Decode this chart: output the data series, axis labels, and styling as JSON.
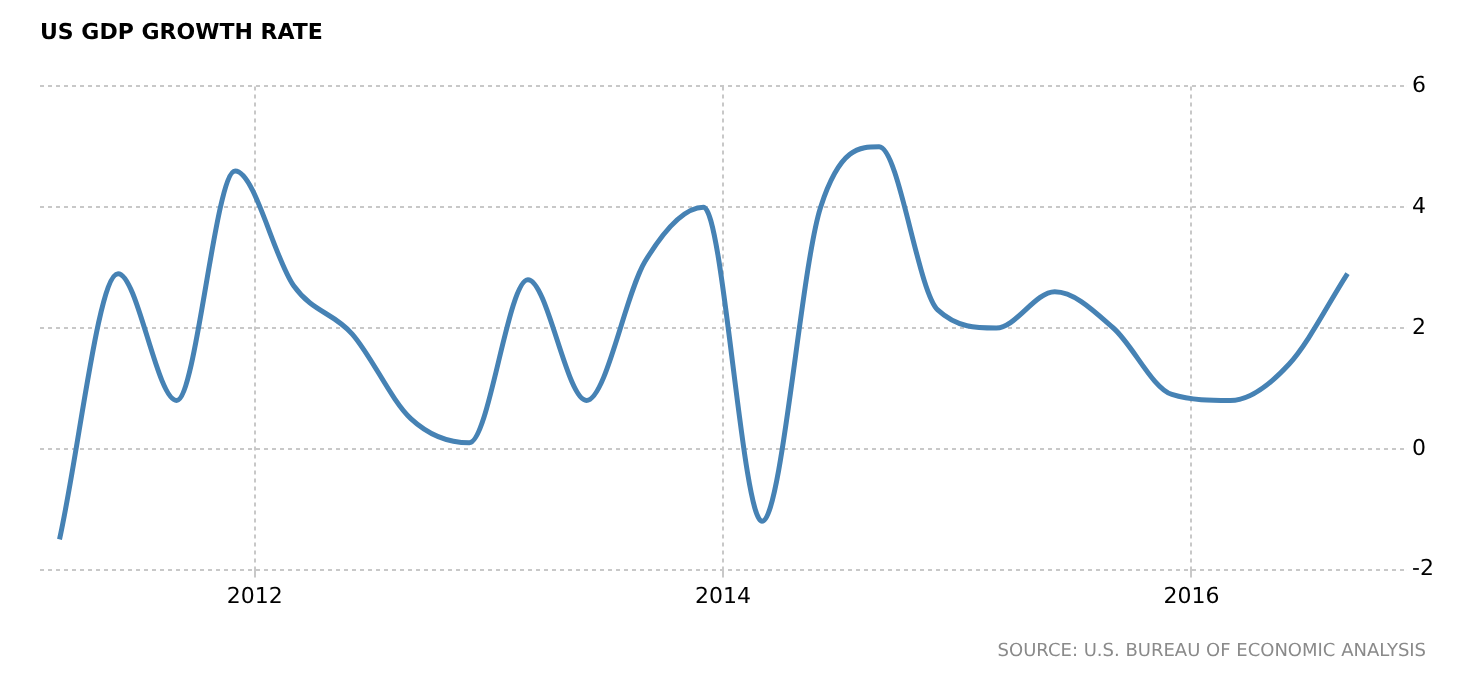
{
  "chart_data": {
    "type": "line",
    "title": "US GDP GROWTH RATE",
    "x": [
      "2011-03",
      "2011-06",
      "2011-09",
      "2011-12",
      "2012-03",
      "2012-06",
      "2012-09",
      "2012-12",
      "2013-03",
      "2013-06",
      "2013-09",
      "2013-12",
      "2014-03",
      "2014-06",
      "2014-09",
      "2014-12",
      "2015-03",
      "2015-06",
      "2015-09",
      "2015-12",
      "2016-03",
      "2016-06",
      "2016-09"
    ],
    "series": [
      {
        "color": "#4682b4",
        "values": [
          -1.5,
          2.9,
          0.8,
          4.6,
          2.7,
          1.9,
          0.5,
          0.1,
          2.8,
          0.8,
          3.1,
          4.0,
          -1.2,
          4.0,
          5.0,
          2.3,
          2.0,
          2.6,
          2.0,
          0.9,
          0.8,
          1.4,
          2.9
        ]
      }
    ],
    "xlim": [
      "2011-02",
      "2016-12"
    ],
    "xticks": [
      "2012",
      "2014",
      "2016"
    ],
    "ylim": [
      -2,
      6
    ],
    "yticks": [
      -2,
      0,
      2,
      4,
      6
    ],
    "grid": true,
    "legend": false,
    "marker": "none",
    "line_style": "solid",
    "annotations": [
      "SOURCE: U.S. BUREAU OF ECONOMIC ANALYSIS"
    ]
  }
}
